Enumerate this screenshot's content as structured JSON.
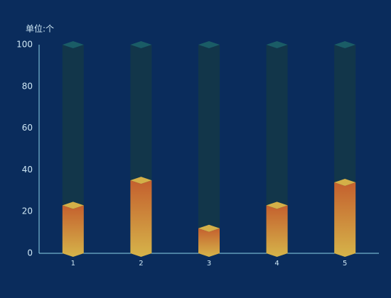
{
  "chart_data": {
    "type": "bar",
    "y_label": "单位:个",
    "categories": [
      "1",
      "2",
      "3",
      "4",
      "5"
    ],
    "values": [
      23,
      35,
      12,
      23,
      34
    ],
    "color": "#d4b048",
    "ylim": [
      0,
      100
    ],
    "yticks": [
      0,
      20,
      40,
      60,
      80,
      100
    ],
    "grid": false
  }
}
